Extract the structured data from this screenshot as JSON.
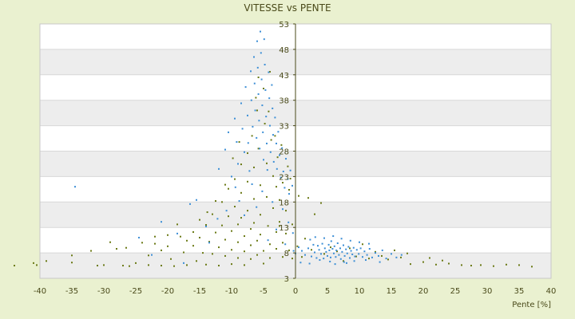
{
  "chart_data": {
    "type": "scatter",
    "title": "VITESSE vs PENTE",
    "xlabel": "Pente [%]",
    "ylabel": "",
    "xlim": [
      -40,
      40
    ],
    "ylim": [
      3,
      53
    ],
    "x_ticks": [
      -40,
      -35,
      -30,
      -25,
      -20,
      -15,
      -10,
      -5,
      0,
      5,
      10,
      15,
      20,
      25,
      30,
      35,
      40
    ],
    "y_ticks": [
      3,
      8,
      13,
      18,
      23,
      28,
      33,
      38,
      43,
      48,
      53
    ],
    "grid": "horizontal alternating bands",
    "legend": "none",
    "series": [
      {
        "color": "#6b7a16",
        "points": [
          [
            -44,
            5.5
          ],
          [
            -41,
            6.0
          ],
          [
            -40.5,
            5.6
          ],
          [
            -39,
            6.4
          ],
          [
            -35,
            6.1
          ],
          [
            -35,
            7.5
          ],
          [
            -32,
            8.4
          ],
          [
            -31,
            5.5
          ],
          [
            -30,
            5.6
          ],
          [
            -29,
            10.1
          ],
          [
            -28,
            8.8
          ],
          [
            -27,
            5.5
          ],
          [
            -26.5,
            9.0
          ],
          [
            -26,
            5.4
          ],
          [
            -25,
            6.0
          ],
          [
            -24,
            10.0
          ],
          [
            -23,
            7.5
          ],
          [
            -23,
            5.6
          ],
          [
            -22,
            11.2
          ],
          [
            -22,
            9.8
          ],
          [
            -21,
            8.5
          ],
          [
            -21,
            5.5
          ],
          [
            -20,
            11.5
          ],
          [
            -20,
            9.3
          ],
          [
            -19.5,
            6.8
          ],
          [
            -19,
            5.4
          ],
          [
            -18.5,
            13.6
          ],
          [
            -18,
            11.2
          ],
          [
            -17.5,
            8.1
          ],
          [
            -17,
            10.4
          ],
          [
            -17,
            5.6
          ],
          [
            -16,
            12.1
          ],
          [
            -16,
            9.4
          ],
          [
            -15.5,
            6.4
          ],
          [
            -15,
            14.5
          ],
          [
            -15,
            11.0
          ],
          [
            -14.5,
            8.0
          ],
          [
            -14,
            5.7
          ],
          [
            -14,
            13.5
          ],
          [
            -13.5,
            10.2
          ],
          [
            -13,
            7.8
          ],
          [
            -13,
            15.6
          ],
          [
            -12.5,
            12.0
          ],
          [
            -12,
            9.1
          ],
          [
            -12,
            5.5
          ],
          [
            -11.5,
            18.0
          ],
          [
            -11.5,
            13.4
          ],
          [
            -11,
            10.6
          ],
          [
            -11,
            7.4
          ],
          [
            -10.5,
            20.6
          ],
          [
            -10.5,
            15.2
          ],
          [
            -10,
            12.3
          ],
          [
            -10,
            8.6
          ],
          [
            -10,
            5.8
          ],
          [
            -9.5,
            22.5
          ],
          [
            -9.5,
            17.1
          ],
          [
            -9,
            13.6
          ],
          [
            -9,
            10.1
          ],
          [
            -9,
            7.0
          ],
          [
            -8.5,
            25.4
          ],
          [
            -8.5,
            19.8
          ],
          [
            -8.5,
            14.9
          ],
          [
            -8,
            11.3
          ],
          [
            -8,
            8.3
          ],
          [
            -8,
            5.6
          ],
          [
            -7.5,
            27.6
          ],
          [
            -7.5,
            22.0
          ],
          [
            -7.5,
            16.3
          ],
          [
            -7,
            12.7
          ],
          [
            -7,
            9.5
          ],
          [
            -7,
            6.8
          ],
          [
            -6.8,
            31.0
          ],
          [
            -6.5,
            24.8
          ],
          [
            -6.5,
            18.6
          ],
          [
            -6.5,
            13.9
          ],
          [
            -6,
            10.4
          ],
          [
            -6,
            7.6
          ],
          [
            -6,
            36.0
          ],
          [
            -5.8,
            28.5
          ],
          [
            -5.5,
            21.3
          ],
          [
            -5.5,
            15.5
          ],
          [
            -5.5,
            11.6
          ],
          [
            -5,
            8.4
          ],
          [
            -5,
            5.9
          ],
          [
            -5,
            40.3
          ],
          [
            -4.8,
            33.4
          ],
          [
            -4.5,
            25.6
          ],
          [
            -4.5,
            19.0
          ],
          [
            -4.3,
            13.3
          ],
          [
            -4,
            9.7
          ],
          [
            -4,
            7.0
          ],
          [
            -4,
            43.6
          ],
          [
            -3.8,
            30.2
          ],
          [
            -3.5,
            23.1
          ],
          [
            -3.5,
            16.8
          ],
          [
            -3,
            12.1
          ],
          [
            -3,
            8.8
          ],
          [
            -3,
            21.0
          ],
          [
            -2.8,
            26.8
          ],
          [
            -2.5,
            18.4
          ],
          [
            -2.5,
            14.1
          ],
          [
            -2,
            10.0
          ],
          [
            -2,
            7.2
          ],
          [
            -2,
            21.8
          ],
          [
            -1.5,
            16.3
          ],
          [
            -1.5,
            11.8
          ],
          [
            -1,
            8.5
          ],
          [
            -1,
            20.4
          ],
          [
            -0.5,
            13.6
          ],
          [
            -0.5,
            6.9
          ],
          [
            0.3,
            9.3
          ],
          [
            0.5,
            19.2
          ],
          [
            1,
            7.2
          ],
          [
            1.5,
            10.8
          ],
          [
            2,
            18.8
          ],
          [
            2.5,
            8.6
          ],
          [
            3,
            15.6
          ],
          [
            4,
            17.8
          ],
          [
            4.5,
            7.8
          ],
          [
            5.5,
            9.1
          ],
          [
            6.5,
            8.3
          ],
          [
            7.5,
            6.4
          ],
          [
            8.5,
            8.9
          ],
          [
            9.5,
            7.3
          ],
          [
            10.5,
            9.7
          ],
          [
            11.5,
            6.9
          ],
          [
            12.5,
            8.2
          ],
          [
            13.5,
            7.4
          ],
          [
            14.5,
            6.7
          ],
          [
            15.5,
            8.5
          ],
          [
            16.5,
            7.1
          ],
          [
            17.5,
            7.9
          ],
          [
            18,
            5.8
          ],
          [
            20,
            6.2
          ],
          [
            21,
            7.0
          ],
          [
            22,
            5.7
          ],
          [
            23,
            6.5
          ],
          [
            24,
            5.9
          ],
          [
            26,
            5.6
          ],
          [
            27.5,
            5.5
          ],
          [
            29,
            5.6
          ],
          [
            31,
            5.4
          ],
          [
            33,
            5.7
          ],
          [
            35,
            5.6
          ],
          [
            37,
            5.3
          ],
          [
            -5.8,
            42.5
          ],
          [
            -6.2,
            38.5
          ],
          [
            -4.2,
            35.8
          ],
          [
            -3.2,
            31.0
          ],
          [
            -2.2,
            29.2
          ],
          [
            -1.2,
            25.0
          ],
          [
            -0.8,
            22.6
          ],
          [
            -2.5,
            13.3
          ],
          [
            -8.8,
            29.8
          ],
          [
            -9.8,
            26.6
          ],
          [
            -11,
            21.4
          ],
          [
            -12.5,
            18.2
          ],
          [
            -13.8,
            16.0
          ]
        ]
      },
      {
        "color": "#3d8fd6",
        "points": [
          [
            -34.5,
            21.0
          ],
          [
            -24.5,
            11.0
          ],
          [
            -22.5,
            7.6
          ],
          [
            -21,
            14.1
          ],
          [
            -18.5,
            11.8
          ],
          [
            -16.5,
            17.6
          ],
          [
            -15.5,
            18.4
          ],
          [
            -14,
            13.2
          ],
          [
            -13.5,
            10.0
          ],
          [
            -12,
            24.5
          ],
          [
            -11,
            28.3
          ],
          [
            -10.5,
            31.7
          ],
          [
            -10,
            23.0
          ],
          [
            -9.5,
            34.4
          ],
          [
            -9.2,
            29.8
          ],
          [
            -9,
            25.5
          ],
          [
            -8.8,
            18.2
          ],
          [
            -8.5,
            37.4
          ],
          [
            -8.3,
            32.4
          ],
          [
            -8,
            27.8
          ],
          [
            -7.8,
            40.6
          ],
          [
            -7.5,
            35.0
          ],
          [
            -7.4,
            29.6
          ],
          [
            -7.2,
            24.1
          ],
          [
            -7,
            43.7
          ],
          [
            -6.9,
            38.0
          ],
          [
            -6.7,
            32.8
          ],
          [
            -6.5,
            46.5
          ],
          [
            -6.4,
            41.3
          ],
          [
            -6.3,
            36.0
          ],
          [
            -6.1,
            30.6
          ],
          [
            -6,
            49.6
          ],
          [
            -5.9,
            44.4
          ],
          [
            -5.8,
            39.2
          ],
          [
            -5.7,
            34.0
          ],
          [
            -5.6,
            28.5
          ],
          [
            -5.5,
            51.5
          ],
          [
            -5.4,
            47.3
          ],
          [
            -5.3,
            42.1
          ],
          [
            -5.2,
            37.0
          ],
          [
            -5.1,
            31.7
          ],
          [
            -5,
            26.3
          ],
          [
            -4.9,
            50.0
          ],
          [
            -4.8,
            45.0
          ],
          [
            -4.7,
            40.0
          ],
          [
            -4.6,
            34.8
          ],
          [
            -4.5,
            29.5
          ],
          [
            -4.4,
            24.3
          ],
          [
            -4.2,
            43.5
          ],
          [
            -4.1,
            38.4
          ],
          [
            -4,
            33.0
          ],
          [
            -3.9,
            27.8
          ],
          [
            -3.7,
            41.0
          ],
          [
            -3.6,
            36.4
          ],
          [
            -3.5,
            31.2
          ],
          [
            -3.4,
            25.9
          ],
          [
            -3.2,
            34.6
          ],
          [
            -3,
            29.5
          ],
          [
            -2.9,
            24.5
          ],
          [
            -2.7,
            31.8
          ],
          [
            -2.5,
            27.2
          ],
          [
            -2.3,
            22.8
          ],
          [
            -2.1,
            28.6
          ],
          [
            -1.9,
            24.0
          ],
          [
            -1.7,
            20.8
          ],
          [
            -1.5,
            26.5
          ],
          [
            -1.2,
            22.5
          ],
          [
            -1,
            19.6
          ],
          [
            -0.8,
            24.2
          ],
          [
            -0.5,
            21.2
          ],
          [
            -0.3,
            8.4
          ],
          [
            0,
            7.9
          ],
          [
            0.5,
            9.1
          ],
          [
            1,
            8.4
          ],
          [
            1.5,
            7.6
          ],
          [
            2,
            8.9
          ],
          [
            2.5,
            7.3
          ],
          [
            2.8,
            9.6
          ],
          [
            3,
            8.1
          ],
          [
            3.3,
            7.0
          ],
          [
            3.5,
            9.4
          ],
          [
            3.7,
            8.6
          ],
          [
            4,
            7.8
          ],
          [
            4.2,
            9.8
          ],
          [
            4.4,
            6.9
          ],
          [
            4.6,
            8.9
          ],
          [
            4.8,
            8.2
          ],
          [
            5,
            7.4
          ],
          [
            5.2,
            9.6
          ],
          [
            5.3,
            8.5
          ],
          [
            5.5,
            7.1
          ],
          [
            5.6,
            10.3
          ],
          [
            5.8,
            8.8
          ],
          [
            6,
            7.9
          ],
          [
            6.1,
            9.3
          ],
          [
            6.3,
            7.2
          ],
          [
            6.4,
            8.5
          ],
          [
            6.6,
            9.9
          ],
          [
            6.8,
            7.6
          ],
          [
            7,
            8.9
          ],
          [
            7.1,
            6.8
          ],
          [
            7.3,
            8.2
          ],
          [
            7.5,
            9.5
          ],
          [
            7.7,
            7.4
          ],
          [
            7.9,
            8.7
          ],
          [
            8.1,
            7.9
          ],
          [
            8.3,
            9.2
          ],
          [
            8.5,
            7.0
          ],
          [
            8.7,
            8.4
          ],
          [
            8.9,
            7.7
          ],
          [
            9.1,
            9.0
          ],
          [
            9.3,
            7.3
          ],
          [
            9.6,
            8.6
          ],
          [
            9.9,
            7.8
          ],
          [
            10.2,
            8.9
          ],
          [
            10.5,
            7.2
          ],
          [
            10.8,
            8.3
          ],
          [
            11.2,
            7.6
          ],
          [
            11.6,
            8.8
          ],
          [
            12,
            7.1
          ],
          [
            12.5,
            8.0
          ],
          [
            13,
            7.4
          ],
          [
            13.6,
            8.5
          ],
          [
            14.2,
            6.9
          ],
          [
            15,
            7.8
          ],
          [
            15.8,
            7.1
          ],
          [
            16.6,
            7.6
          ],
          [
            2.3,
            10.6
          ],
          [
            3.1,
            11.1
          ],
          [
            4.5,
            10.9
          ],
          [
            5.9,
            11.3
          ],
          [
            7.2,
            10.8
          ],
          [
            8.6,
            10.4
          ],
          [
            10,
            10.1
          ],
          [
            11.5,
            9.8
          ],
          [
            3.8,
            6.6
          ],
          [
            5.4,
            6.3
          ],
          [
            7.6,
            6.2
          ],
          [
            9.2,
            6.4
          ],
          [
            11,
            6.6
          ],
          [
            0.8,
            6.1
          ],
          [
            2.2,
            5.9
          ],
          [
            6.2,
            5.8
          ],
          [
            8,
            6.0
          ],
          [
            13.2,
            6.2
          ],
          [
            -6.8,
            21.5
          ],
          [
            -8,
            15.4
          ],
          [
            -3.6,
            18.0
          ],
          [
            -2,
            16.6
          ],
          [
            -1.1,
            14.0
          ],
          [
            -0.4,
            11.9
          ],
          [
            -5.2,
            20.1
          ],
          [
            -6.1,
            17.0
          ],
          [
            -9.4,
            20.9
          ],
          [
            -10.8,
            16.3
          ],
          [
            -12.2,
            14.7
          ],
          [
            -3,
            12.6
          ],
          [
            -4.3,
            10.5
          ],
          [
            -1.6,
            9.7
          ],
          [
            -17.5,
            6.0
          ]
        ]
      }
    ]
  }
}
